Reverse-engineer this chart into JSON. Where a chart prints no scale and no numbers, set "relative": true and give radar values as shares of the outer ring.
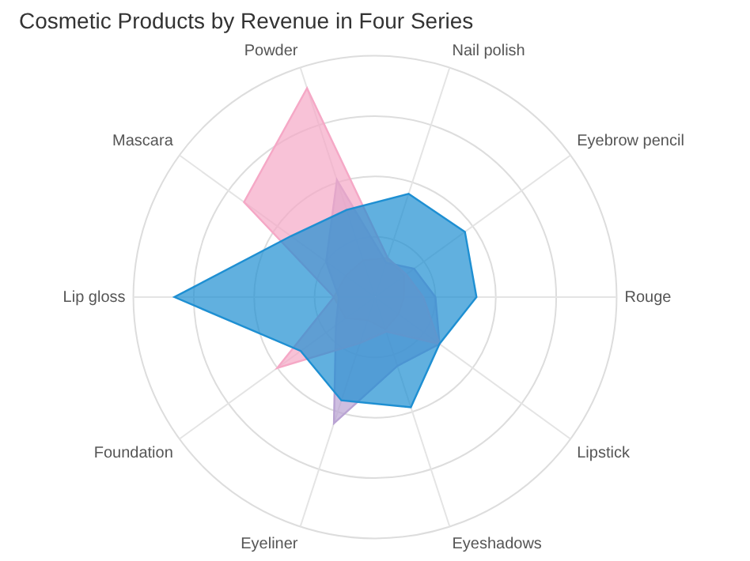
{
  "chart_data": {
    "type": "radar",
    "title": "Cosmetic Products by Revenue in Four Series",
    "relative": true,
    "grid": true,
    "legend": false,
    "marker": "none",
    "categories": [
      "Nail polish",
      "Eyebrow pencil",
      "Rouge",
      "Lipstick",
      "Eyeshadows",
      "Eyeliner",
      "Foundation",
      "Lip gloss",
      "Mascara",
      "Powder"
    ],
    "series": [
      {
        "color": "#1e8fd2",
        "values": [
          0.45,
          0.46,
          0.42,
          0.33,
          0.48,
          0.45,
          0.38,
          0.83,
          0.43,
          0.38
        ]
      },
      {
        "color": "#f5a8c6",
        "values": [
          0.17,
          0.16,
          0.2,
          0.33,
          0.15,
          0.2,
          0.5,
          0.17,
          0.67,
          0.91
        ]
      },
      {
        "color": "#b9a3d3",
        "values": [
          0.15,
          0.2,
          0.25,
          0.33,
          0.3,
          0.55,
          0.2,
          0.15,
          0.25,
          0.51
        ]
      },
      {
        "color": "#f6c3ab",
        "values": [
          0.17,
          0.15,
          0.12,
          0.12,
          0.14,
          0.1,
          0.15,
          0.17,
          0.15,
          0.16
        ]
      }
    ]
  }
}
